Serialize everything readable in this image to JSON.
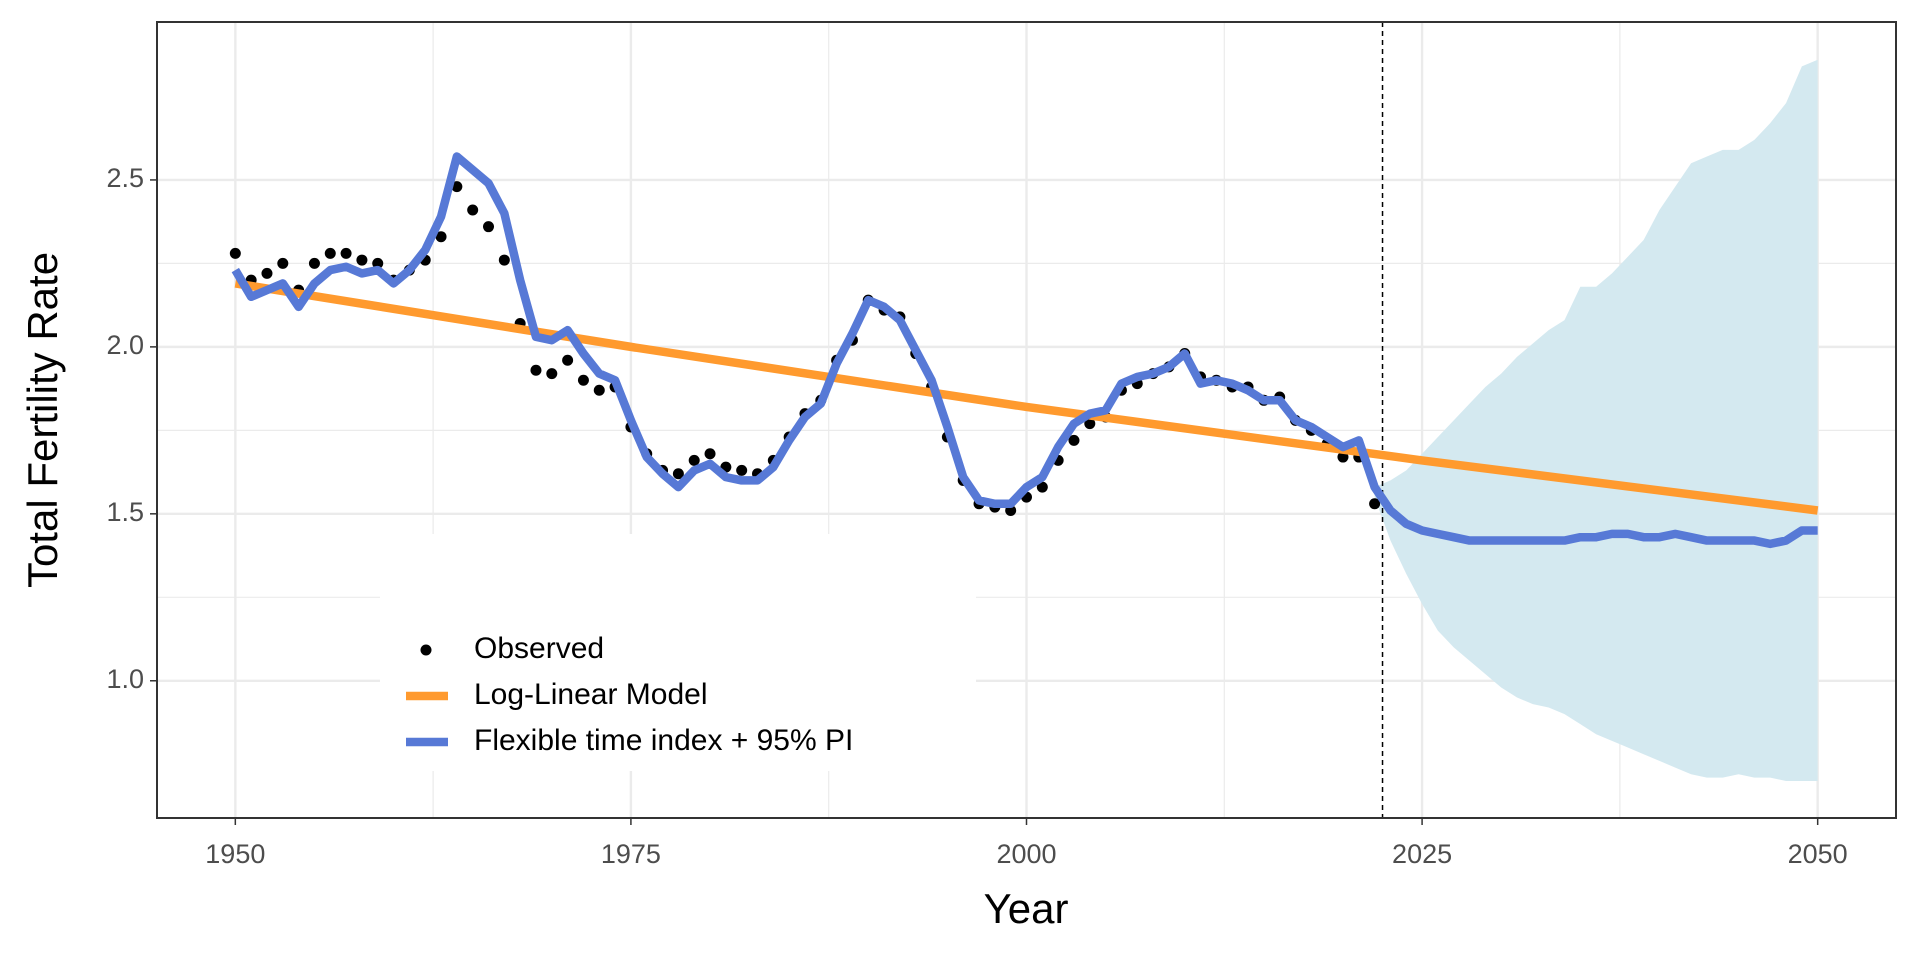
{
  "chart_data": {
    "type": "line",
    "xlabel": "Year",
    "ylabel": "Total Fertility Rate",
    "xlim": [
      1945.05,
      2054.95
    ],
    "xticks": [
      1950,
      1975,
      2000,
      2025,
      2050
    ],
    "ylim": [
      0.589,
      2.973
    ],
    "yticks": [
      {
        "value": 1,
        "label": "1.0"
      },
      1.5,
      {
        "value": 2,
        "label": "2.0"
      },
      2.5
    ],
    "grid": true,
    "minor_grid": true,
    "legend_position": "bottom-left",
    "forecast_start": 2022.5,
    "series": [
      {
        "name": "Observed",
        "style": "points",
        "color": "#000000",
        "x": [
          1950,
          1951,
          1952,
          1953,
          1954,
          1955,
          1956,
          1957,
          1958,
          1959,
          1960,
          1961,
          1962,
          1963,
          1964,
          1965,
          1966,
          1967,
          1968,
          1969,
          1970,
          1971,
          1972,
          1973,
          1974,
          1975,
          1976,
          1977,
          1978,
          1979,
          1980,
          1981,
          1982,
          1983,
          1984,
          1985,
          1986,
          1987,
          1988,
          1989,
          1990,
          1991,
          1992,
          1993,
          1994,
          1995,
          1996,
          1997,
          1998,
          1999,
          2000,
          2001,
          2002,
          2003,
          2004,
          2005,
          2006,
          2007,
          2008,
          2009,
          2010,
          2011,
          2012,
          2013,
          2014,
          2015,
          2016,
          2017,
          2018,
          2019,
          2020,
          2021,
          2022
        ],
        "values": [
          2.28,
          2.2,
          2.22,
          2.25,
          2.17,
          2.25,
          2.28,
          2.28,
          2.26,
          2.25,
          2.2,
          2.23,
          2.26,
          2.33,
          2.48,
          2.41,
          2.36,
          2.26,
          2.07,
          1.93,
          1.92,
          1.96,
          1.9,
          1.87,
          1.88,
          1.76,
          1.68,
          1.63,
          1.62,
          1.66,
          1.68,
          1.64,
          1.63,
          1.62,
          1.66,
          1.73,
          1.8,
          1.84,
          1.96,
          2.02,
          2.14,
          2.11,
          2.09,
          1.98,
          1.88,
          1.73,
          1.6,
          1.53,
          1.52,
          1.51,
          1.55,
          1.58,
          1.66,
          1.72,
          1.77,
          1.79,
          1.87,
          1.89,
          1.92,
          1.94,
          1.98,
          1.91,
          1.9,
          1.88,
          1.88,
          1.84,
          1.85,
          1.78,
          1.75,
          1.71,
          1.67,
          1.67,
          1.53
        ]
      },
      {
        "name": "Log-Linear Model",
        "style": "line",
        "color": "#ff9a2e",
        "x": [
          1950,
          1975,
          2000,
          2025,
          2050
        ],
        "values": [
          2.19,
          2.0,
          1.82,
          1.66,
          1.51
        ]
      },
      {
        "name": "Flexible time index + 95% PI",
        "style": "line",
        "color": "#5779d6",
        "x": [
          1950,
          1951,
          1952,
          1953,
          1954,
          1955,
          1956,
          1957,
          1958,
          1959,
          1960,
          1961,
          1962,
          1963,
          1964,
          1965,
          1966,
          1967,
          1968,
          1969,
          1970,
          1971,
          1972,
          1973,
          1974,
          1975,
          1976,
          1977,
          1978,
          1979,
          1980,
          1981,
          1982,
          1983,
          1984,
          1985,
          1986,
          1987,
          1988,
          1989,
          1990,
          1991,
          1992,
          1993,
          1994,
          1995,
          1996,
          1997,
          1998,
          1999,
          2000,
          2001,
          2002,
          2003,
          2004,
          2005,
          2006,
          2007,
          2008,
          2009,
          2010,
          2011,
          2012,
          2013,
          2014,
          2015,
          2016,
          2017,
          2018,
          2019,
          2020,
          2021,
          2022,
          2023,
          2024,
          2025,
          2026,
          2027,
          2028,
          2029,
          2030,
          2031,
          2032,
          2033,
          2034,
          2035,
          2036,
          2037,
          2038,
          2039,
          2040,
          2041,
          2042,
          2043,
          2044,
          2045,
          2046,
          2047,
          2048,
          2049,
          2050
        ],
        "values": [
          2.23,
          2.15,
          2.17,
          2.19,
          2.12,
          2.19,
          2.23,
          2.24,
          2.22,
          2.23,
          2.19,
          2.23,
          2.29,
          2.39,
          2.57,
          2.53,
          2.49,
          2.4,
          2.2,
          2.03,
          2.02,
          2.05,
          1.98,
          1.92,
          1.9,
          1.78,
          1.67,
          1.62,
          1.58,
          1.63,
          1.65,
          1.61,
          1.6,
          1.6,
          1.64,
          1.72,
          1.79,
          1.83,
          1.95,
          2.04,
          2.14,
          2.12,
          2.08,
          1.99,
          1.9,
          1.76,
          1.61,
          1.54,
          1.53,
          1.53,
          1.58,
          1.61,
          1.7,
          1.77,
          1.8,
          1.81,
          1.89,
          1.91,
          1.92,
          1.94,
          1.98,
          1.89,
          1.9,
          1.89,
          1.87,
          1.84,
          1.84,
          1.78,
          1.76,
          1.73,
          1.7,
          1.72,
          1.58,
          1.51,
          1.47,
          1.45,
          1.44,
          1.43,
          1.42,
          1.42,
          1.42,
          1.42,
          1.42,
          1.42,
          1.42,
          1.43,
          1.43,
          1.44,
          1.44,
          1.43,
          1.43,
          1.44,
          1.43,
          1.42,
          1.42,
          1.42,
          1.42,
          1.41,
          1.42,
          1.45,
          1.45
        ],
        "band": {
          "color": "#d4e9f0",
          "x": [
            2022,
            2023,
            2024,
            2025,
            2026,
            2027,
            2028,
            2029,
            2030,
            2031,
            2032,
            2033,
            2034,
            2035,
            2036,
            2037,
            2038,
            2039,
            2040,
            2041,
            2042,
            2043,
            2044,
            2045,
            2046,
            2047,
            2048,
            2049,
            2050
          ],
          "lower": [
            1.55,
            1.42,
            1.32,
            1.23,
            1.15,
            1.1,
            1.06,
            1.02,
            0.98,
            0.95,
            0.93,
            0.92,
            0.9,
            0.87,
            0.84,
            0.82,
            0.8,
            0.78,
            0.76,
            0.74,
            0.72,
            0.71,
            0.71,
            0.72,
            0.71,
            0.71,
            0.7,
            0.7,
            0.7
          ],
          "upper": [
            1.58,
            1.6,
            1.63,
            1.68,
            1.73,
            1.78,
            1.83,
            1.88,
            1.92,
            1.97,
            2.01,
            2.05,
            2.08,
            2.18,
            2.18,
            2.22,
            2.27,
            2.32,
            2.41,
            2.48,
            2.55,
            2.57,
            2.59,
            2.59,
            2.62,
            2.67,
            2.73,
            2.84,
            2.86
          ]
        }
      }
    ]
  }
}
